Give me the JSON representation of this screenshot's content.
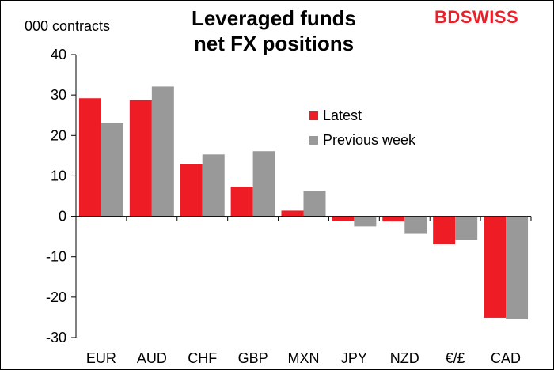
{
  "header": {
    "title_line1": "Leveraged funds",
    "title_line2": "net FX positions",
    "unit": "000 contracts",
    "logo_part1": "BD",
    "logo_part2": "SWISS"
  },
  "chart_data": {
    "type": "bar",
    "title": "Leveraged funds net FX positions",
    "ylabel": "000 contracts",
    "ylim": [
      -30,
      40
    ],
    "yticks": [
      40,
      30,
      20,
      10,
      0,
      -10,
      -20,
      -30
    ],
    "categories": [
      "EUR",
      "AUD",
      "CHF",
      "GBP",
      "MXN",
      "JPY",
      "NZD",
      "€/£",
      "CAD"
    ],
    "series": [
      {
        "name": "Latest",
        "color": "#ee1c25",
        "values": [
          29.2,
          28.7,
          12.9,
          7.3,
          1.4,
          -1.2,
          -1.3,
          -6.9,
          -25.1
        ]
      },
      {
        "name": "Previous week",
        "color": "#999999",
        "values": [
          23.1,
          32.1,
          15.3,
          16.1,
          6.3,
          -2.5,
          -4.3,
          -5.9,
          -25.5
        ]
      }
    ],
    "grid": false,
    "legend": "center-right"
  }
}
